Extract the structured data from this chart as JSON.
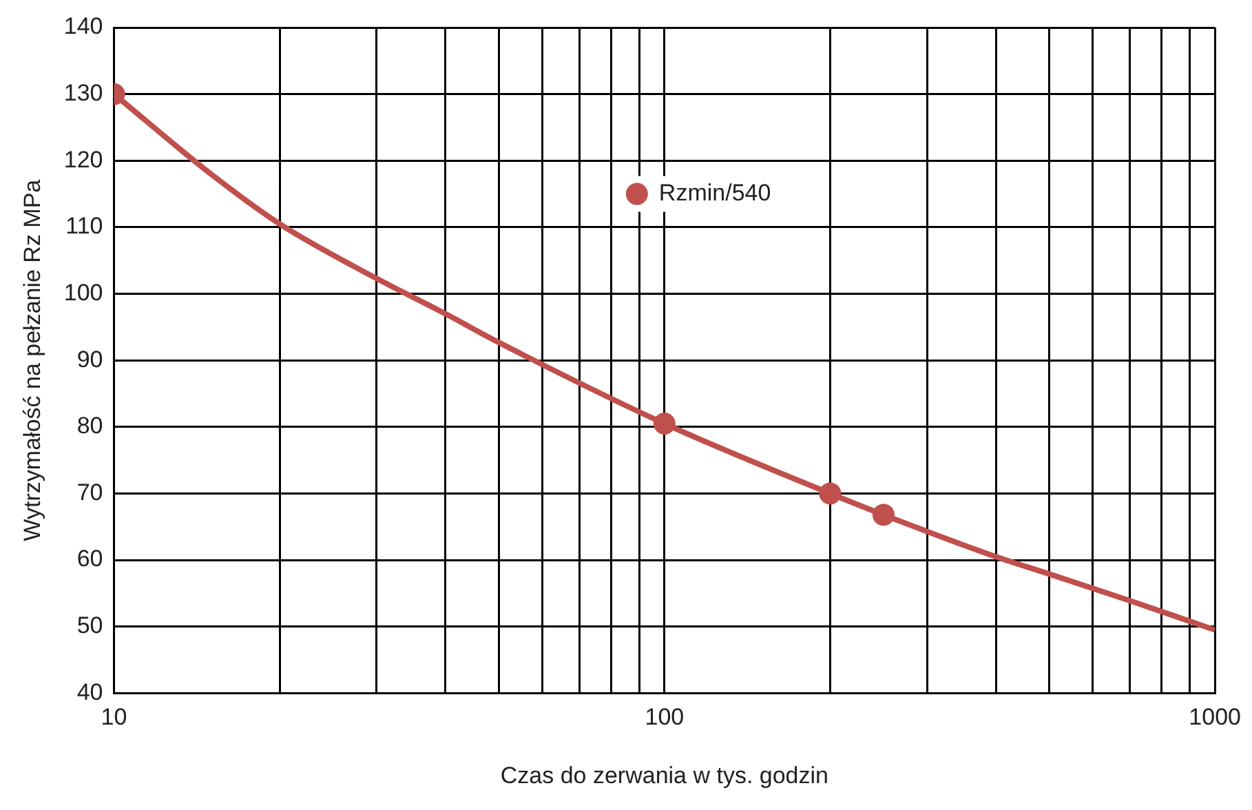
{
  "chart_data": {
    "type": "scatter",
    "xlabel": "Czas do zerwania w tys. godzin",
    "ylabel": "Wytrzymałość na pełzanie Rz MPa",
    "series": [
      {
        "type": "line",
        "color": "#c0504d",
        "marker": "none",
        "x": [
          10,
          15,
          20,
          30,
          40,
          50,
          100,
          200,
          250,
          400,
          500,
          700,
          1000
        ],
        "values": [
          130,
          118,
          110.5,
          102.3,
          97,
          92.7,
          80.5,
          70,
          66.8,
          60.5,
          57.9,
          53.9,
          49.5
        ]
      },
      {
        "type": "scatter",
        "name": "Rzmin/540",
        "color": "#c0504d",
        "marker": "circle",
        "x": [
          10,
          100,
          200,
          250
        ],
        "values": [
          130,
          80.5,
          70,
          66.8
        ]
      }
    ],
    "log": "x",
    "grid": true,
    "legend": "top",
    "xlim": [
      10,
      1000
    ],
    "ylim": [
      40,
      140
    ],
    "xticks": [
      10,
      {
        "value": 20,
        "label": null
      },
      {
        "value": 30,
        "label": null
      },
      {
        "value": 40,
        "label": null
      },
      {
        "value": 50,
        "label": null
      },
      {
        "value": 60,
        "label": null
      },
      {
        "value": 70,
        "label": null
      },
      {
        "value": 80,
        "label": null
      },
      {
        "value": 90,
        "label": null
      },
      100,
      {
        "value": 200,
        "label": null
      },
      {
        "value": 300,
        "label": null
      },
      {
        "value": 400,
        "label": null
      },
      {
        "value": 500,
        "label": null
      },
      {
        "value": 600,
        "label": null
      },
      {
        "value": 700,
        "label": null
      },
      {
        "value": 800,
        "label": null
      },
      {
        "value": 900,
        "label": null
      },
      1000
    ],
    "yticks": [
      40,
      50,
      60,
      70,
      80,
      90,
      100,
      110,
      120,
      130,
      140
    ]
  }
}
